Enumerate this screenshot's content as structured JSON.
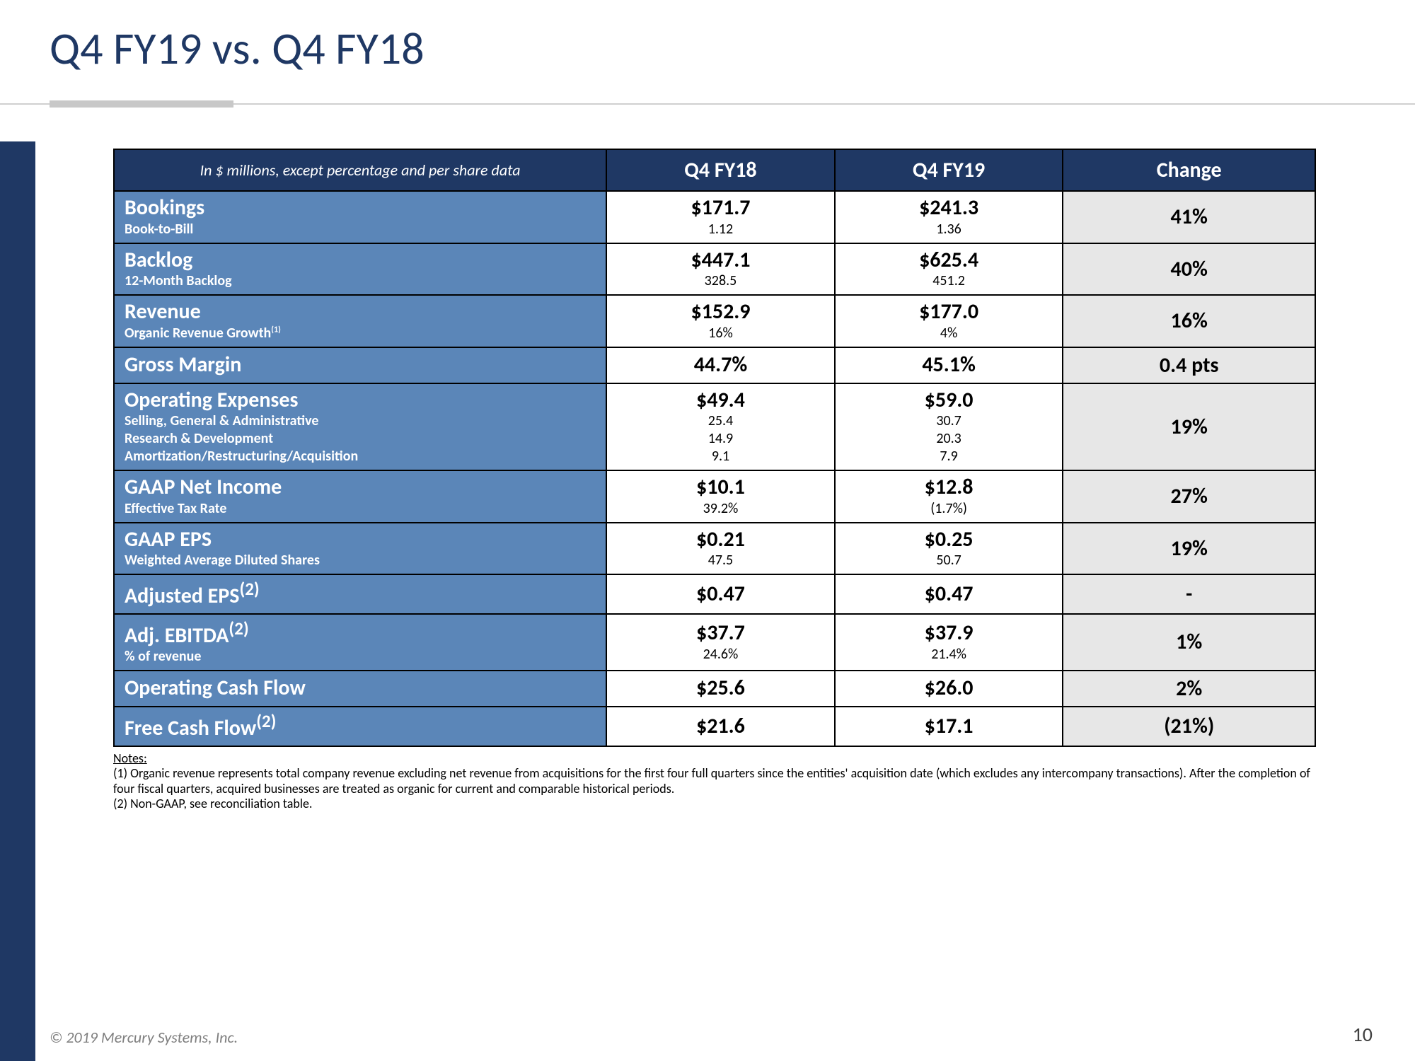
{
  "title": "Q4 FY19 vs. Q4 FY18",
  "columns": {
    "note": "In $ millions, except percentage and per share data",
    "c1": "Q4 FY18",
    "c2": "Q4 FY19",
    "c3": "Change"
  },
  "rows": [
    {
      "label_main": "Bookings",
      "subs": [
        "Book-to-Bill"
      ],
      "v1": [
        "$171.7",
        "1.12"
      ],
      "v2": [
        "$241.3",
        "1.36"
      ],
      "change": "41%"
    },
    {
      "label_main": "Backlog",
      "subs": [
        "12-Month Backlog"
      ],
      "v1": [
        "$447.1",
        "328.5"
      ],
      "v2": [
        "$625.4",
        "451.2"
      ],
      "change": "40%"
    },
    {
      "label_main": "Revenue",
      "subs_html": [
        "Organic Revenue Growth<sup>(1)</sup>"
      ],
      "v1": [
        "$152.9",
        "16%"
      ],
      "v2": [
        "$177.0",
        "4%"
      ],
      "change": "16%"
    },
    {
      "label_main": "Gross Margin",
      "subs": [],
      "v1": [
        "44.7%"
      ],
      "v2": [
        "45.1%"
      ],
      "change": "0.4 pts"
    },
    {
      "label_main": "Operating Expenses",
      "subs": [
        "Selling, General & Administrative",
        "Research & Development",
        "Amortization/Restructuring/Acquisition"
      ],
      "v1": [
        "$49.4",
        "25.4",
        "14.9",
        "9.1"
      ],
      "v2": [
        "$59.0",
        "30.7",
        "20.3",
        "7.9"
      ],
      "change": "19%"
    },
    {
      "label_main": "GAAP Net Income",
      "subs": [
        "Effective Tax Rate"
      ],
      "v1": [
        "$10.1",
        "39.2%"
      ],
      "v2": [
        "$12.8",
        "(1.7%)"
      ],
      "change": "27%"
    },
    {
      "label_main": "GAAP EPS",
      "subs": [
        "Weighted Average Diluted Shares"
      ],
      "v1": [
        "$0.21",
        "47.5"
      ],
      "v2": [
        "$0.25",
        "50.7"
      ],
      "change": "19%"
    },
    {
      "label_main_html": "Adjusted EPS<sup>(2)</sup>",
      "subs": [],
      "v1": [
        "$0.47"
      ],
      "v2": [
        "$0.47"
      ],
      "change": "-"
    },
    {
      "label_main_html": "Adj. EBITDA<sup>(2)</sup>",
      "subs": [
        "% of revenue"
      ],
      "v1": [
        "$37.7",
        "24.6%"
      ],
      "v2": [
        "$37.9",
        "21.4%"
      ],
      "change": "1%"
    },
    {
      "label_main": "Operating Cash Flow",
      "subs": [],
      "v1": [
        "$25.6"
      ],
      "v2": [
        "$26.0"
      ],
      "change": "2%"
    },
    {
      "label_main_html": "Free Cash Flow<sup>(2)</sup>",
      "subs": [],
      "v1": [
        "$21.6"
      ],
      "v2": [
        "$17.1"
      ],
      "change": "(21%)"
    }
  ],
  "notes": {
    "heading": "Notes:",
    "n1": "(1) Organic revenue represents total company revenue excluding net revenue from acquisitions for the first four full quarters since the entities' acquisition date (which excludes any intercompany transactions). After the completion of four fiscal quarters, acquired businesses are treated as organic for current and comparable historical periods.",
    "n2": "(2) Non-GAAP, see reconciliation table."
  },
  "footer": {
    "copyright": "© 2019 Mercury Systems, Inc.",
    "page": "10"
  },
  "col_widths": {
    "label": "41%",
    "val": "19%",
    "change": "21%"
  },
  "colors": {
    "brand_dark": "#1f3864",
    "row_header_bg": "#5b86b8",
    "change_bg": "#e7e7e7"
  }
}
